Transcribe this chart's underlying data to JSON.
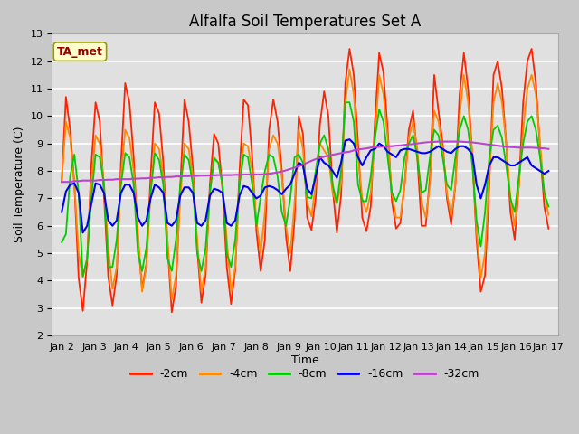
{
  "title": "Alfalfa Soil Temperatures Set A",
  "xlabel": "Time",
  "ylabel": "Soil Temperature (C)",
  "annotation": "TA_met",
  "ylim": [
    2.0,
    13.0
  ],
  "yticks": [
    2.0,
    3.0,
    4.0,
    5.0,
    6.0,
    7.0,
    8.0,
    9.0,
    10.0,
    11.0,
    12.0,
    13.0
  ],
  "xtick_labels": [
    "Jan 2",
    "Jan 3",
    "Jan 4",
    "Jan 5",
    "Jan 6",
    "Jan 7",
    "Jan 8",
    "Jan 9",
    "Jan 10",
    "Jan 11",
    "Jan 12",
    "Jan 13",
    "Jan 14",
    "Jan 15",
    "Jan 16",
    "Jan 17"
  ],
  "series_colors": [
    "#ff2200",
    "#ff8800",
    "#00cc00",
    "#0000ee",
    "#bb44cc"
  ],
  "series_names": [
    "-2cm",
    "-4cm",
    "-8cm",
    "-16cm",
    "-32cm"
  ],
  "series_lw": [
    1.3,
    1.3,
    1.3,
    1.5,
    1.5
  ],
  "fig_bg": "#c8c8c8",
  "plot_bg": "#e0e0e0",
  "title_fontsize": 12,
  "label_fontsize": 9,
  "tick_fontsize": 8,
  "legend_fontsize": 9,
  "data_2cm": [
    7.6,
    10.7,
    9.5,
    7.5,
    4.1,
    2.9,
    4.7,
    8.2,
    10.5,
    9.8,
    7.1,
    4.15,
    3.1,
    4.2,
    8.3,
    11.2,
    10.5,
    8.5,
    5.5,
    3.7,
    4.6,
    7.8,
    10.5,
    10.1,
    8.3,
    5.3,
    2.85,
    3.8,
    7.4,
    10.6,
    9.8,
    8.1,
    5.2,
    3.2,
    4.2,
    7.5,
    9.35,
    9.0,
    7.3,
    4.5,
    3.15,
    4.4,
    8.0,
    10.6,
    10.4,
    8.5,
    5.8,
    4.35,
    5.5,
    9.5,
    10.6,
    9.8,
    8.0,
    5.6,
    4.35,
    6.2,
    10.0,
    9.35,
    6.3,
    5.85,
    7.0,
    9.7,
    10.9,
    10.0,
    7.4,
    5.75,
    7.1,
    11.2,
    12.45,
    11.5,
    9.0,
    6.3,
    5.8,
    6.7,
    9.8,
    12.3,
    11.6,
    9.5,
    6.9,
    5.9,
    6.1,
    7.5,
    9.5,
    10.2,
    8.5,
    6.0,
    6.0,
    7.8,
    11.5,
    10.2,
    9.0,
    7.0,
    6.05,
    7.5,
    10.8,
    12.3,
    11.0,
    8.5,
    5.5,
    3.6,
    4.2,
    7.5,
    11.5,
    12.0,
    11.0,
    9.0,
    6.5,
    5.5,
    7.5,
    10.5,
    12.0,
    12.45,
    11.2,
    8.8,
    6.7,
    5.9
  ],
  "data_4cm": [
    7.6,
    9.8,
    9.2,
    7.5,
    5.0,
    4.15,
    4.8,
    7.5,
    9.3,
    9.0,
    7.5,
    5.2,
    3.7,
    4.5,
    7.8,
    9.5,
    9.2,
    8.0,
    5.8,
    3.6,
    4.5,
    7.2,
    9.0,
    8.8,
    7.8,
    5.5,
    3.3,
    4.2,
    7.0,
    9.0,
    8.8,
    7.8,
    5.5,
    3.6,
    4.5,
    7.2,
    8.5,
    8.3,
    7.5,
    5.5,
    3.6,
    4.5,
    7.5,
    9.0,
    8.9,
    8.0,
    6.2,
    5.0,
    6.5,
    8.8,
    9.3,
    9.0,
    7.8,
    6.0,
    5.0,
    6.8,
    9.5,
    8.8,
    6.85,
    6.35,
    7.5,
    9.0,
    8.75,
    8.5,
    7.2,
    6.8,
    7.5,
    10.5,
    11.7,
    10.8,
    8.5,
    7.0,
    6.5,
    7.2,
    9.2,
    11.5,
    10.8,
    9.2,
    7.2,
    6.3,
    6.3,
    7.5,
    9.2,
    9.8,
    8.8,
    6.9,
    6.3,
    7.5,
    10.2,
    9.8,
    8.8,
    7.2,
    6.35,
    7.5,
    10.0,
    11.5,
    10.5,
    8.5,
    5.8,
    4.1,
    5.0,
    7.8,
    10.5,
    11.2,
    10.5,
    9.0,
    7.0,
    6.0,
    7.5,
    9.5,
    11.0,
    11.5,
    10.8,
    9.0,
    7.2,
    6.4
  ],
  "data_8cm": [
    5.4,
    5.7,
    7.8,
    8.6,
    7.2,
    4.15,
    4.8,
    7.0,
    8.6,
    8.5,
    7.5,
    4.5,
    4.5,
    5.5,
    7.5,
    8.65,
    8.5,
    7.5,
    5.0,
    4.35,
    5.2,
    7.2,
    8.65,
    8.4,
    7.5,
    4.8,
    4.35,
    5.5,
    7.5,
    8.6,
    8.4,
    7.5,
    5.0,
    4.35,
    5.2,
    7.2,
    8.45,
    8.3,
    7.5,
    5.0,
    4.5,
    5.5,
    7.5,
    8.6,
    8.5,
    7.5,
    6.0,
    7.05,
    8.0,
    8.6,
    8.5,
    7.8,
    6.5,
    6.0,
    7.0,
    8.5,
    8.6,
    8.3,
    7.05,
    7.0,
    8.0,
    9.0,
    9.3,
    8.8,
    7.5,
    6.85,
    8.0,
    10.5,
    10.5,
    9.8,
    7.5,
    6.9,
    6.9,
    7.8,
    9.2,
    10.25,
    9.8,
    8.5,
    7.2,
    6.9,
    7.3,
    8.5,
    9.0,
    9.3,
    8.5,
    7.2,
    7.3,
    8.5,
    9.5,
    9.3,
    8.5,
    7.5,
    7.3,
    8.5,
    9.5,
    10.0,
    9.5,
    8.2,
    6.2,
    5.25,
    6.5,
    8.5,
    9.5,
    9.65,
    9.2,
    8.2,
    7.0,
    6.5,
    7.8,
    9.0,
    9.8,
    10.0,
    9.5,
    8.5,
    7.2,
    6.7
  ],
  "data_16cm": [
    6.5,
    7.25,
    7.5,
    7.55,
    7.2,
    5.75,
    6.0,
    6.8,
    7.55,
    7.5,
    7.2,
    6.2,
    6.0,
    6.2,
    7.2,
    7.5,
    7.5,
    7.2,
    6.3,
    6.0,
    6.2,
    7.0,
    7.5,
    7.4,
    7.2,
    6.1,
    6.0,
    6.2,
    7.1,
    7.4,
    7.4,
    7.2,
    6.1,
    6.0,
    6.2,
    7.1,
    7.35,
    7.3,
    7.2,
    6.1,
    6.0,
    6.2,
    7.1,
    7.45,
    7.4,
    7.2,
    7.0,
    7.1,
    7.4,
    7.45,
    7.4,
    7.3,
    7.15,
    7.35,
    7.5,
    7.9,
    8.3,
    8.2,
    7.35,
    7.15,
    7.8,
    8.5,
    8.3,
    8.2,
    8.0,
    7.75,
    8.3,
    9.1,
    9.15,
    9.0,
    8.5,
    8.2,
    8.5,
    8.75,
    8.8,
    9.0,
    8.9,
    8.7,
    8.6,
    8.5,
    8.75,
    8.8,
    8.8,
    8.75,
    8.7,
    8.65,
    8.65,
    8.7,
    8.8,
    8.9,
    8.8,
    8.7,
    8.65,
    8.8,
    8.9,
    8.9,
    8.8,
    8.6,
    7.5,
    7.0,
    7.5,
    8.2,
    8.5,
    8.5,
    8.4,
    8.3,
    8.2,
    8.2,
    8.3,
    8.4,
    8.5,
    8.2,
    8.1,
    8.0,
    7.9,
    8.0
  ],
  "data_32cm": [
    7.6,
    7.6,
    7.6,
    7.63,
    7.63,
    7.65,
    7.65,
    7.65,
    7.65,
    7.67,
    7.67,
    7.68,
    7.68,
    7.7,
    7.7,
    7.7,
    7.7,
    7.72,
    7.72,
    7.73,
    7.73,
    7.75,
    7.75,
    7.77,
    7.77,
    7.78,
    7.78,
    7.8,
    7.8,
    7.81,
    7.81,
    7.82,
    7.82,
    7.83,
    7.83,
    7.84,
    7.84,
    7.85,
    7.85,
    7.85,
    7.85,
    7.86,
    7.86,
    7.87,
    7.87,
    7.87,
    7.87,
    7.87,
    7.88,
    7.9,
    7.92,
    7.95,
    7.98,
    8.02,
    8.07,
    8.12,
    8.17,
    8.23,
    8.3,
    8.37,
    8.43,
    8.48,
    8.52,
    8.56,
    8.59,
    8.62,
    8.65,
    8.68,
    8.7,
    8.75,
    8.78,
    8.8,
    8.82,
    8.85,
    8.87,
    8.88,
    8.89,
    8.9,
    8.9,
    8.92,
    8.93,
    8.95,
    8.97,
    8.98,
    9.0,
    9.02,
    9.04,
    9.05,
    9.06,
    9.07,
    9.07,
    9.07,
    9.07,
    9.07,
    9.07,
    9.06,
    9.05,
    9.04,
    9.02,
    9.0,
    8.98,
    8.96,
    8.94,
    8.92,
    8.9,
    8.88,
    8.87,
    8.86,
    8.85,
    8.85,
    8.85,
    8.85,
    8.84,
    8.83,
    8.82,
    8.8
  ]
}
